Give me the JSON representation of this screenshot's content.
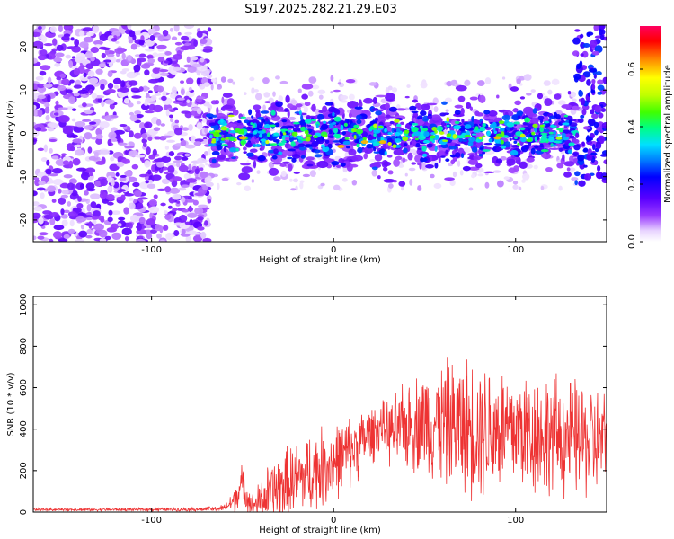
{
  "title": "S197.2025.282.21.29.E03",
  "colors": {
    "line": "#ee3333",
    "axis": "#000000",
    "background": "#ffffff"
  },
  "chart_data": [
    {
      "type": "heatmap",
      "title": "S197.2025.282.21.29.E03",
      "xlabel": "Height of straight line (km)",
      "ylabel": "Frequency (Hz)",
      "xlim": [
        -165,
        150
      ],
      "ylim": [
        -25,
        25
      ],
      "xticks": [
        -100,
        0,
        100
      ],
      "yticks": [
        -20,
        -10,
        0,
        10,
        20
      ],
      "colorbar": {
        "label": "Normalized spectral amplitude",
        "range": [
          0.0,
          0.75
        ],
        "ticks": [
          0.0,
          0.2,
          0.4,
          0.6
        ],
        "tick_labels": [
          "0.0",
          "0.2",
          "0.4",
          "0.6"
        ],
        "colormap": [
          "#ffffff",
          "#e8d4ff",
          "#9a3cff",
          "#5a00ff",
          "#0000ff",
          "#0080ff",
          "#00e0ff",
          "#00ff80",
          "#40ff00",
          "#c0ff00",
          "#ffff00",
          "#ff9000",
          "#ff0000",
          "#ff0060"
        ]
      },
      "description_regions": [
        {
          "x_range": [
            -165,
            -70
          ],
          "y_range": [
            -25,
            25
          ],
          "amplitude": "low (0.05-0.2), scattered noise"
        },
        {
          "x_range": [
            -70,
            135
          ],
          "y_center": 0,
          "y_spread": 8,
          "amplitude": "0.1-0.75 band around 0 Hz"
        },
        {
          "x_range": [
            135,
            150
          ],
          "y_range": [
            -10,
            25
          ],
          "amplitude": "0.1-0.4"
        }
      ]
    },
    {
      "type": "line",
      "xlabel": "Height of straight line (km)",
      "ylabel": "SNR (10 * v/v)",
      "xlim": [
        -165,
        150
      ],
      "ylim": [
        0,
        1040
      ],
      "xticks": [
        -100,
        0,
        100
      ],
      "yticks": [
        0,
        200,
        400,
        600,
        800,
        1000
      ],
      "envelope": {
        "x": [
          -165,
          -120,
          -80,
          -65,
          -60,
          -55,
          -52,
          -50,
          -45,
          -40,
          -35,
          -30,
          -20,
          -10,
          0,
          10,
          20,
          27,
          30,
          40,
          50,
          60,
          70,
          80,
          90,
          100,
          110,
          120,
          130,
          140,
          150
        ],
        "baseline": [
          12,
          12,
          13,
          15,
          20,
          50,
          110,
          130,
          30,
          55,
          90,
          115,
          160,
          200,
          240,
          300,
          370,
          420,
          380,
          410,
          440,
          430,
          420,
          410,
          400,
          390,
          380,
          370,
          360,
          340,
          330
        ],
        "amplitude": [
          8,
          8,
          10,
          15,
          20,
          70,
          120,
          110,
          60,
          120,
          180,
          200,
          220,
          230,
          220,
          200,
          170,
          130,
          180,
          250,
          300,
          350,
          380,
          400,
          380,
          360,
          360,
          340,
          330,
          330,
          300
        ]
      }
    }
  ]
}
